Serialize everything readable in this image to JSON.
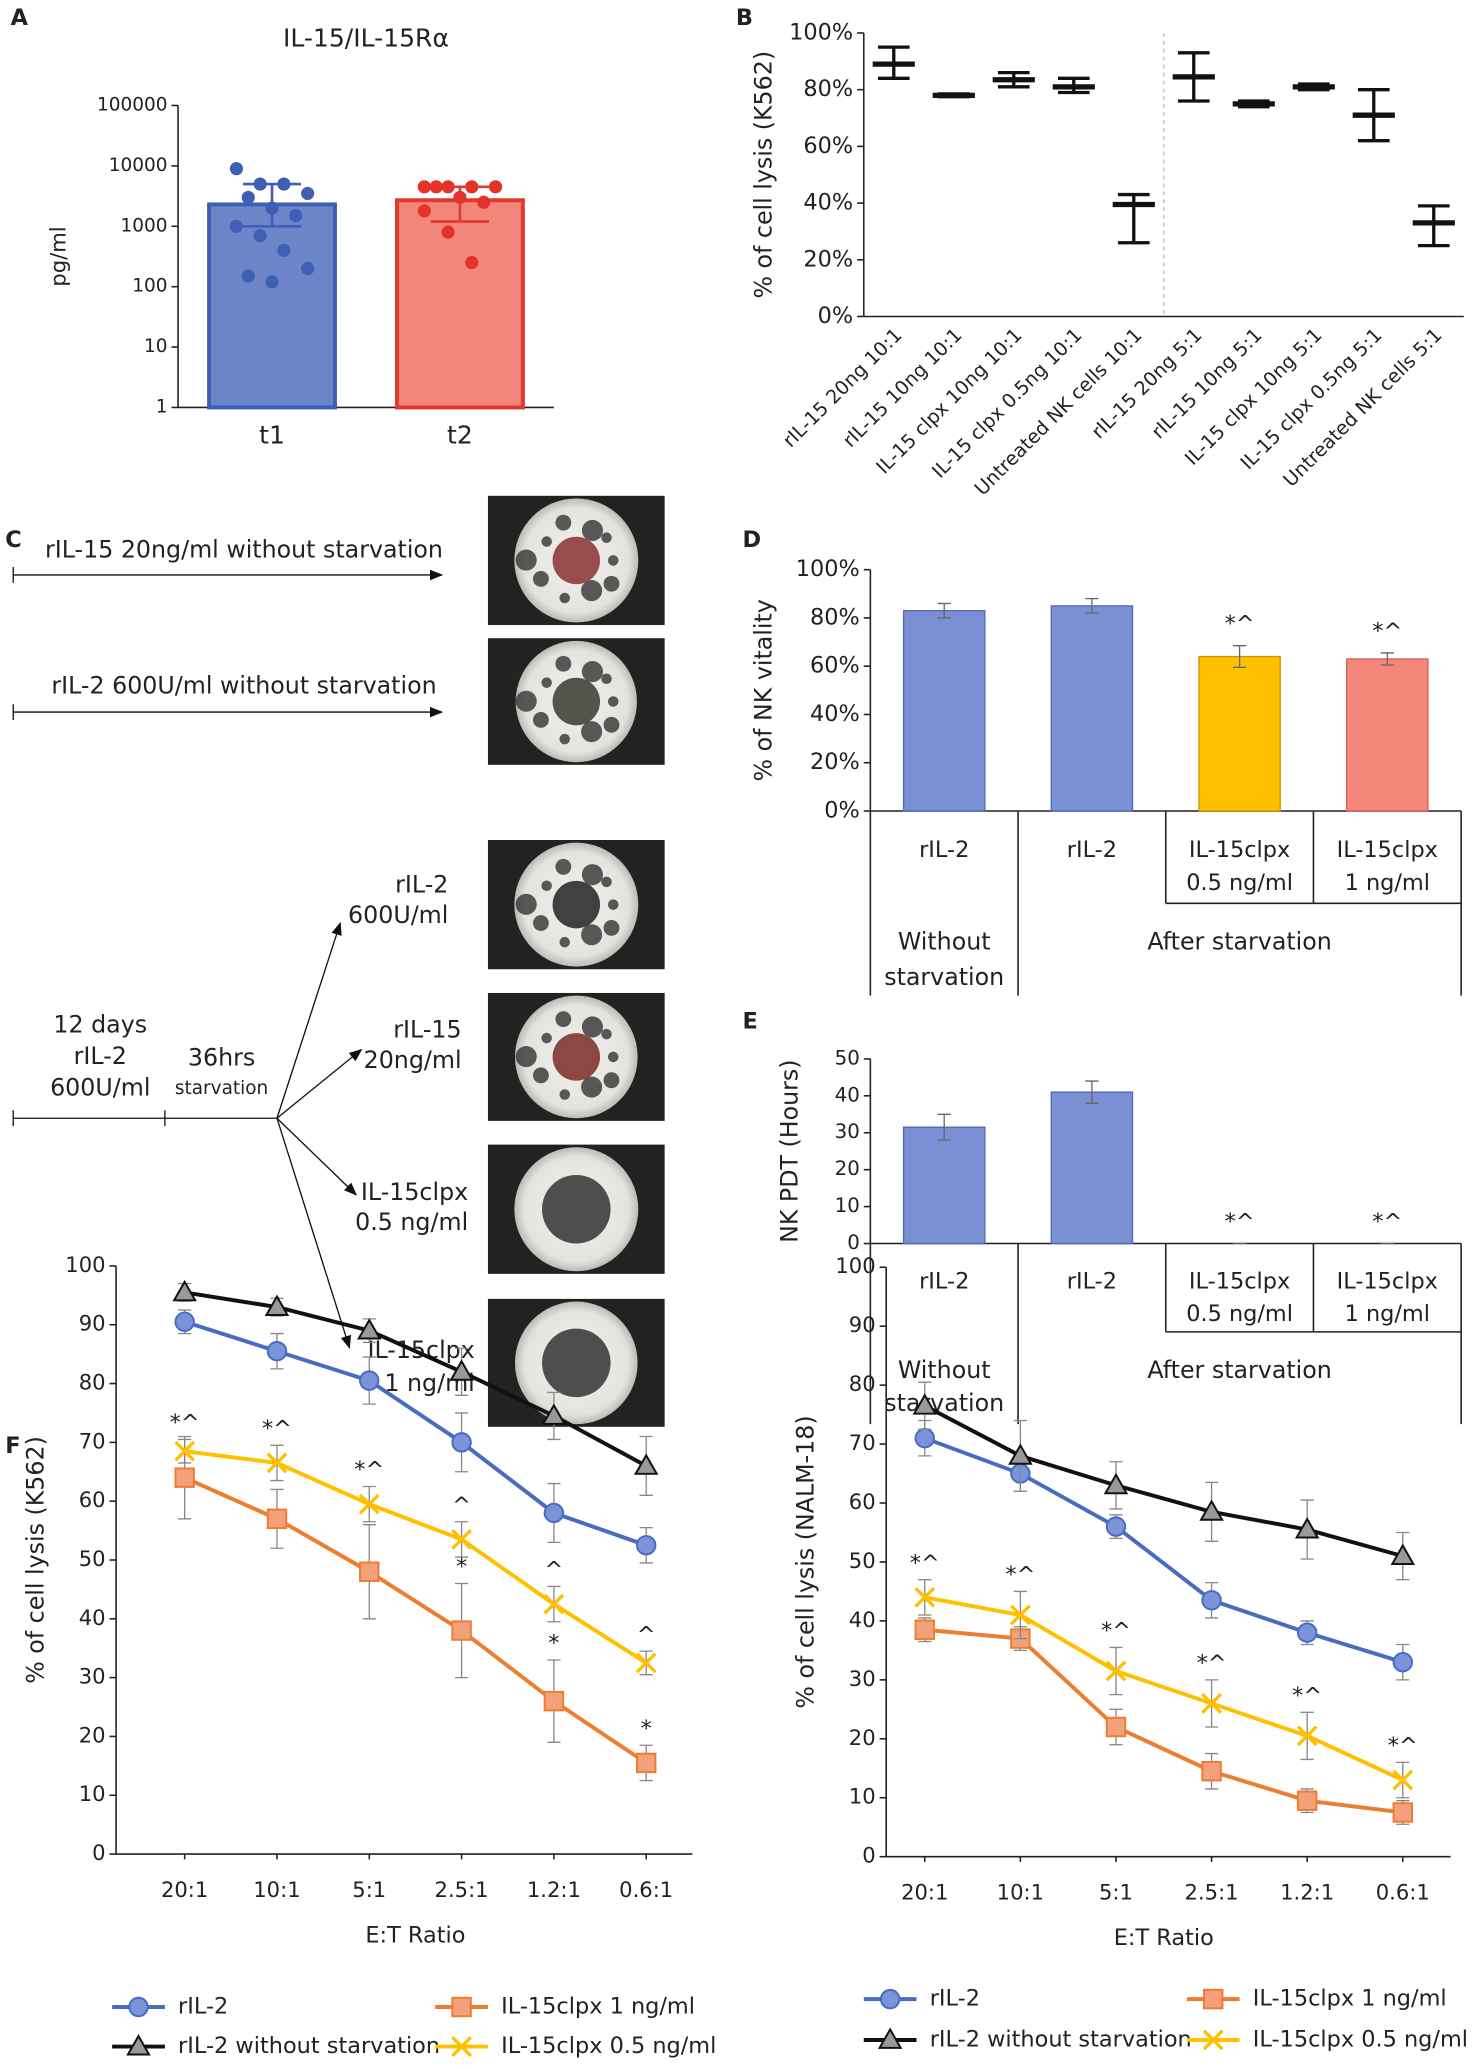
{
  "panel_labels": [
    "A",
    "B",
    "C",
    "D",
    "E",
    "F"
  ],
  "panel_c": {
    "arrows": [
      "rIL-15 20ng/ml without starvation",
      "rIL-2 600U/ml without starvation"
    ],
    "pretreatment": [
      "12 days",
      "rIL-2",
      "600U/ml"
    ],
    "starvation": [
      "36hrs",
      "starvation"
    ],
    "branches": [
      [
        "rIL-2",
        "600U/ml"
      ],
      [
        "rIL-15",
        "20ng/ml"
      ],
      [
        "IL-15clpx",
        "0.5 ng/ml"
      ],
      [
        "IL-15clpx",
        "1 ng/ml"
      ]
    ]
  },
  "chart_data": [
    {
      "type": "bar",
      "title": "IL-15/IL-15Rα",
      "y_label": "pg/ml",
      "log_scale": true,
      "categories": [
        "t1",
        "t2"
      ],
      "values": [
        2300,
        2700
      ],
      "colors": [
        "#6d86c9",
        "#f3867a"
      ],
      "edge_colors": [
        "#3f5fb5",
        "#e03a2e"
      ],
      "point_colors": [
        "#3f5fb5",
        "#e5322a"
      ],
      "error_low": [
        1000,
        1200
      ],
      "error_high": [
        5000,
        4500
      ],
      "points": [
        [
          9000,
          5000,
          5000,
          3500,
          3000,
          2000,
          1500,
          1000,
          700,
          400,
          200,
          150,
          120
        ],
        [
          4500,
          4500,
          4500,
          4500,
          4500,
          3000,
          2500,
          1800,
          800,
          250
        ]
      ],
      "ylim": [
        1,
        100000
      ],
      "yticks": [
        1,
        10,
        100,
        1000,
        10000,
        100000
      ]
    },
    {
      "type": "errorbar",
      "y_label": "% of cell lysis (K562)",
      "categories": [
        "rIL-15 20ng 10:1",
        "rIL-15 10ng 10:1",
        "IL-15 clpx 10ng 10:1",
        "IL-15 clpx 0.5ng 10:1",
        "Untreated NK cells 10:1",
        "rIL-15 20ng 5:1",
        "rIL-15 10ng 5:1",
        "IL-15 clpx 10ng 5:1",
        "IL-15 clpx 0.5ng 5:1",
        "Untreated NK cells 5:1"
      ],
      "values": [
        89,
        78,
        83.5,
        81,
        39.5,
        84.5,
        75,
        81,
        71,
        33
      ],
      "lows": [
        84,
        77.5,
        81,
        79,
        26,
        76,
        74,
        80,
        62,
        25
      ],
      "highs": [
        95,
        78.5,
        86,
        84,
        43,
        93,
        76,
        82,
        80,
        39
      ],
      "ylim": [
        0,
        100
      ],
      "yticks": [
        {
          "value": 0,
          "label": "0%"
        },
        {
          "value": 20,
          "label": "20%"
        },
        {
          "value": 40,
          "label": "40%"
        },
        {
          "value": 60,
          "label": "60%"
        },
        {
          "value": 80,
          "label": "80%"
        },
        {
          "value": 100,
          "label": "100%"
        }
      ]
    },
    {
      "type": "bar",
      "y_label": "% of NK vitality",
      "categories": [
        [
          "rIL-2"
        ],
        [
          "rIL-2"
        ],
        [
          "IL-15clpx",
          "0.5 ng/ml"
        ],
        [
          "IL-15clpx",
          "1 ng/ml"
        ]
      ],
      "group_labels": [
        [
          "Without",
          "starvation"
        ],
        [
          "After starvation"
        ]
      ],
      "values": [
        83,
        85,
        64,
        63
      ],
      "errors": [
        3,
        3,
        4.5,
        2.5
      ],
      "annotations": [
        null,
        null,
        "*^",
        "*^"
      ],
      "colors": [
        "#7b8fd4",
        "#7b8fd4",
        "#ffc000",
        "#f4877a"
      ],
      "edge_colors": [
        "#5068b8",
        "#5068b8",
        "#c79500",
        "#d85f52"
      ],
      "ylim": [
        0,
        100
      ],
      "yticks": [
        {
          "value": 0,
          "label": "0%"
        },
        {
          "value": 20,
          "label": "20%"
        },
        {
          "value": 40,
          "label": "40%"
        },
        {
          "value": 60,
          "label": "60%"
        },
        {
          "value": 80,
          "label": "80%"
        },
        {
          "value": 100,
          "label": "100%"
        }
      ]
    },
    {
      "type": "bar",
      "y_label": "NK PDT (Hours)",
      "categories": [
        [
          "rIL-2"
        ],
        [
          "rIL-2"
        ],
        [
          "IL-15clpx",
          "0.5 ng/ml"
        ],
        [
          "IL-15clpx",
          "1 ng/ml"
        ]
      ],
      "group_labels": [
        [
          "Without",
          "starvation"
        ],
        [
          "After starvation"
        ]
      ],
      "values": [
        31.5,
        41,
        0,
        0
      ],
      "errors": [
        3.5,
        3,
        0,
        0
      ],
      "annotations": [
        null,
        null,
        "*^",
        "*^"
      ],
      "colors": [
        "#7b8fd4",
        "#7b8fd4",
        "#7b8fd4",
        "#7b8fd4"
      ],
      "edge_colors": [
        "#5068b8",
        "#5068b8",
        "#5068b8",
        "#5068b8"
      ],
      "ylim": [
        0,
        50
      ],
      "yticks": [
        0,
        10,
        20,
        30,
        40,
        50
      ]
    },
    {
      "type": "line",
      "y_label": "% of cell lysis (K562)",
      "x_label": "E:T Ratio",
      "categories": [
        "20:1",
        "10:1",
        "5:1",
        "2.5:1",
        "1.2:1",
        "0.6:1"
      ],
      "ylim": [
        0,
        100
      ],
      "yticks": [
        0,
        10,
        20,
        30,
        40,
        50,
        60,
        70,
        80,
        90,
        100
      ],
      "series": [
        {
          "name": "rIL-2",
          "color": "#4a6cc0",
          "marker": "circle",
          "marker_fill": "#7b93d8",
          "values": [
            90.5,
            85.5,
            80.5,
            70,
            58,
            52.5
          ],
          "errors": [
            2,
            3,
            4,
            5,
            5,
            3
          ]
        },
        {
          "name": "rIL-2 without starvation",
          "color": "#111111",
          "marker": "triangle",
          "marker_fill": "#999999",
          "values": [
            95.5,
            93,
            89,
            82,
            74.5,
            66
          ],
          "errors": [
            1.5,
            1.5,
            2,
            4,
            4,
            5
          ]
        },
        {
          "name": "IL-15clpx 1 ng/ml",
          "color": "#ed7d31",
          "marker": "square",
          "marker_fill": "#f4a07a",
          "values": [
            64,
            57,
            48,
            38,
            26,
            15.5
          ],
          "errors": [
            7,
            5,
            8,
            8,
            7,
            3
          ],
          "point_labels": [
            null,
            null,
            null,
            "*",
            "*",
            "*"
          ]
        },
        {
          "name": "IL-15clpx 0.5 ng/ml",
          "color": "#ffc000",
          "marker": "x",
          "marker_fill": "#ffc000",
          "values": [
            68.5,
            66.5,
            59.5,
            53.5,
            42.5,
            32.5
          ],
          "errors": [
            2,
            3,
            3,
            3,
            3,
            2
          ],
          "point_labels": [
            "*^",
            "*^",
            "*^",
            "^",
            "^",
            "^"
          ]
        }
      ]
    },
    {
      "type": "line",
      "y_label": "% of cell lysis (NALM-18)",
      "x_label": "E:T Ratio",
      "categories": [
        "20:1",
        "10:1",
        "5:1",
        "2.5:1",
        "1.2:1",
        "0.6:1"
      ],
      "ylim": [
        0,
        100
      ],
      "yticks": [
        0,
        10,
        20,
        30,
        40,
        50,
        60,
        70,
        80,
        90,
        100
      ],
      "series": [
        {
          "name": "rIL-2",
          "color": "#4a6cc0",
          "marker": "circle",
          "marker_fill": "#7b93d8",
          "values": [
            71,
            65,
            56,
            43.5,
            38,
            33
          ],
          "errors": [
            3,
            3,
            2,
            3,
            2,
            3
          ]
        },
        {
          "name": "rIL-2 without starvation",
          "color": "#111111",
          "marker": "triangle",
          "marker_fill": "#999999",
          "values": [
            76.5,
            68,
            63,
            58.5,
            55.5,
            51
          ],
          "errors": [
            4,
            6,
            4,
            5,
            5,
            4
          ]
        },
        {
          "name": "IL-15clpx 1 ng/ml",
          "color": "#ed7d31",
          "marker": "square",
          "marker_fill": "#f4a07a",
          "values": [
            38.5,
            37,
            22,
            14.5,
            9.5,
            7.5
          ],
          "errors": [
            2,
            2,
            3,
            3,
            2,
            2
          ]
        },
        {
          "name": "IL-15clpx 0.5 ng/ml",
          "color": "#ffc000",
          "marker": "x",
          "marker_fill": "#ffc000",
          "values": [
            44,
            41,
            31.5,
            26,
            20.5,
            13
          ],
          "errors": [
            3,
            4,
            4,
            4,
            4,
            3
          ],
          "point_labels": [
            "*^",
            "*^",
            "*^",
            "*^",
            "*^",
            "*^"
          ]
        }
      ]
    }
  ]
}
